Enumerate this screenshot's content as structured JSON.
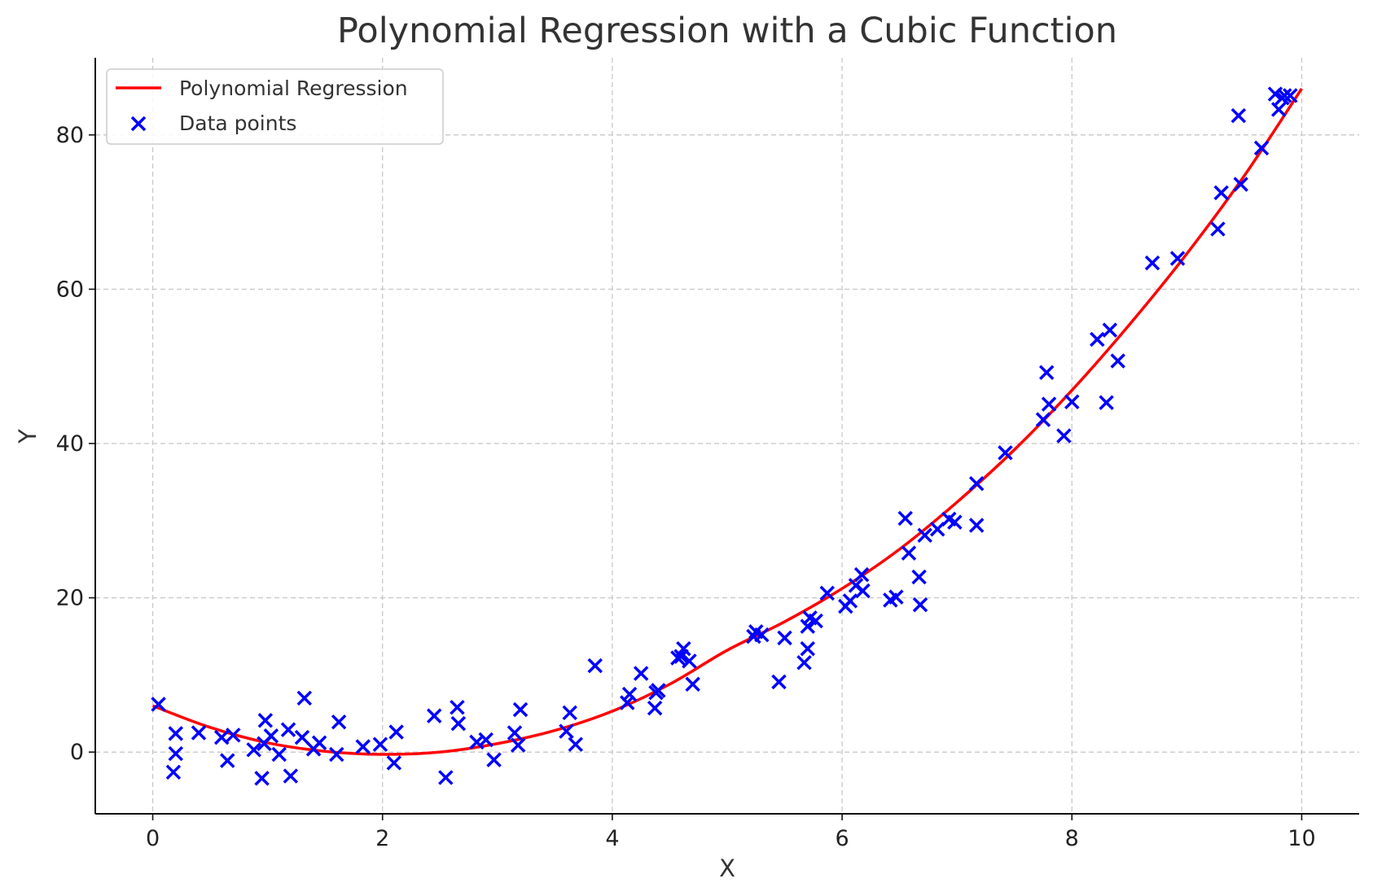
{
  "chart_data": {
    "type": "scatter",
    "title": "Polynomial Regression with a Cubic Function",
    "xlabel": "X",
    "ylabel": "Y",
    "xlim": [
      -0.5,
      10.5
    ],
    "ylim": [
      -8,
      90
    ],
    "xticks": [
      0,
      2,
      4,
      6,
      8,
      10
    ],
    "yticks": [
      0,
      20,
      40,
      60,
      80
    ],
    "grid": true,
    "legend_position": "top-left",
    "colors": {
      "regression": "#ff0000",
      "points": "#0000ff"
    },
    "series": [
      {
        "name": "Polynomial Regression",
        "kind": "line",
        "x": [
          0,
          0.5,
          1,
          1.5,
          2,
          2.5,
          3,
          3.5,
          4,
          4.5,
          5,
          5.5,
          6,
          6.5,
          7,
          7.5,
          8,
          8.5,
          9,
          9.5,
          10
        ],
        "y": [
          6,
          3.2,
          1.2,
          0.1,
          -0.3,
          0,
          1.1,
          2.8,
          5.3,
          8.8,
          13.2,
          16.9,
          21.2,
          26.3,
          32.4,
          39.2,
          46.9,
          55.4,
          64.6,
          74.7,
          86
        ]
      },
      {
        "name": "Data points",
        "kind": "scatter",
        "x": [
          0.05,
          0.18,
          0.2,
          0.2,
          0.4,
          0.6,
          0.65,
          0.7,
          0.88,
          0.95,
          0.97,
          0.98,
          1.03,
          1.1,
          1.18,
          1.2,
          1.3,
          1.32,
          1.4,
          1.45,
          1.6,
          1.62,
          1.83,
          1.98,
          2.1,
          2.12,
          2.45,
          2.55,
          2.65,
          2.66,
          2.82,
          2.9,
          2.97,
          3.15,
          3.18,
          3.2,
          3.6,
          3.63,
          3.68,
          3.85,
          4.13,
          4.15,
          4.25,
          4.37,
          4.38,
          4.4,
          4.57,
          4.6,
          4.62,
          4.67,
          4.7,
          5.23,
          5.25,
          5.3,
          5.45,
          5.5,
          5.67,
          5.7,
          5.7,
          5.72,
          5.77,
          5.87,
          6.03,
          6.07,
          6.12,
          6.17,
          6.18,
          6.42,
          6.47,
          6.55,
          6.58,
          6.67,
          6.68,
          6.72,
          6.83,
          6.93,
          6.98,
          7.17,
          7.17,
          7.42,
          7.75,
          7.78,
          7.8,
          7.93,
          8.0,
          8.22,
          8.3,
          8.33,
          8.4,
          8.7,
          8.92,
          9.27,
          9.3,
          9.45,
          9.47,
          9.65,
          9.77,
          9.8,
          9.83,
          9.85,
          9.9
        ],
        "y": [
          6.2,
          -2.6,
          2.4,
          -0.2,
          2.5,
          1.9,
          -1.1,
          2.2,
          0.3,
          -3.4,
          1.1,
          4.1,
          2.1,
          -0.3,
          2.9,
          -3.1,
          1.9,
          7,
          0.4,
          1.2,
          -0.3,
          3.9,
          0.7,
          1,
          -1.4,
          2.6,
          4.7,
          -3.3,
          5.8,
          3.7,
          1.3,
          1.6,
          -1,
          2.5,
          0.9,
          5.5,
          2.7,
          5.1,
          1,
          11.2,
          6.4,
          7.5,
          10.2,
          5.7,
          7.7,
          8,
          12.2,
          12.4,
          13.4,
          11.8,
          8.8,
          15,
          15.6,
          15.2,
          9.1,
          14.8,
          11.6,
          13.4,
          16.3,
          17.4,
          17,
          20.6,
          18.9,
          19.6,
          21.6,
          23,
          20.9,
          19.7,
          20.1,
          30.3,
          25.8,
          22.7,
          19.1,
          28.1,
          28.9,
          30.2,
          29.8,
          29.4,
          34.8,
          38.8,
          43.1,
          49.2,
          45.1,
          41,
          45.4,
          53.5,
          45.3,
          54.7,
          50.7,
          63.4,
          64,
          67.8,
          72.5,
          82.5,
          73.6,
          78.3,
          85.3,
          83.3,
          84.8,
          85.1,
          85.1
        ]
      }
    ]
  }
}
